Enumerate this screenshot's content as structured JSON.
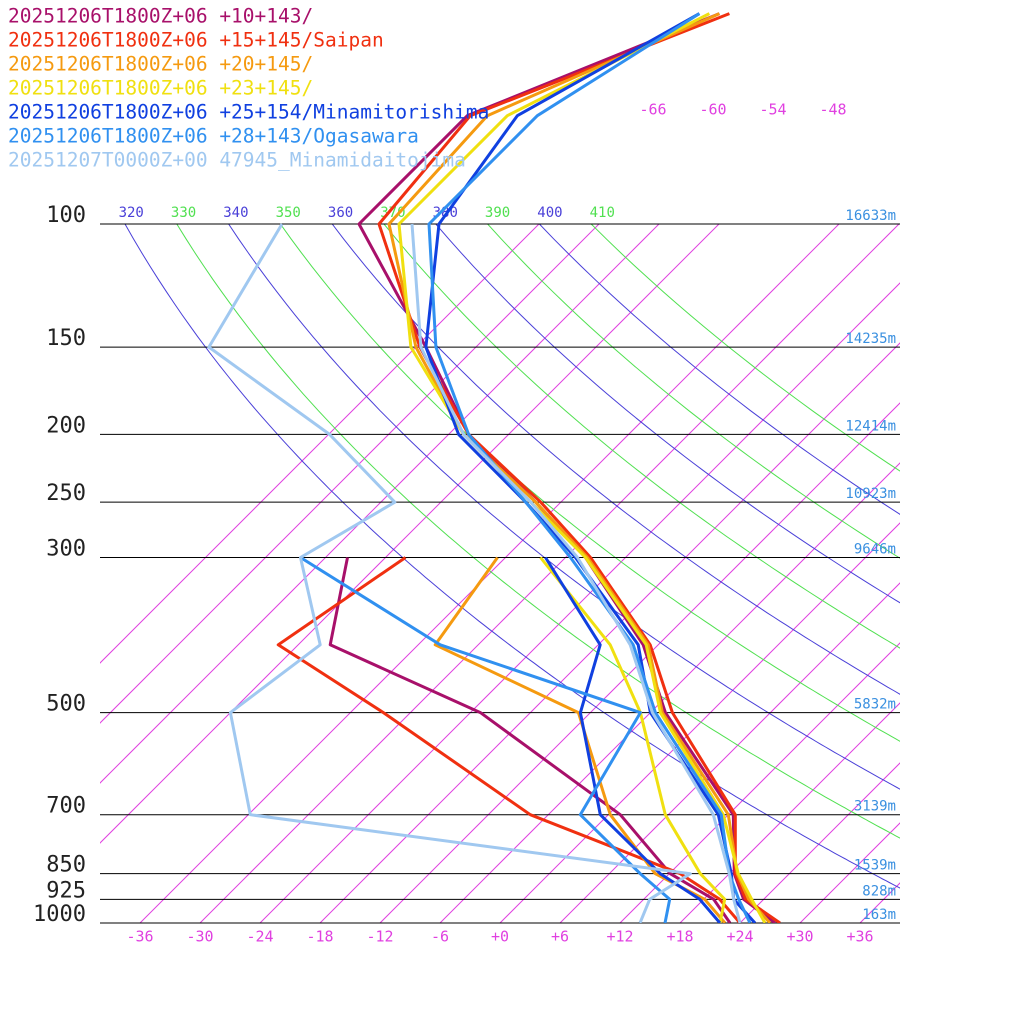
{
  "chart_data": {
    "type": "skewt",
    "xlim": [
      -40,
      40
    ],
    "ylim": [
      1000,
      100
    ],
    "xticks": [
      -36,
      -30,
      -24,
      -18,
      -12,
      -6,
      {
        "value": 0,
        "label": "+0"
      },
      {
        "value": 6,
        "label": "+6"
      },
      {
        "value": 12,
        "label": "+12"
      },
      {
        "value": 18,
        "label": "+18"
      },
      {
        "value": 24,
        "label": "+24"
      },
      {
        "value": 30,
        "label": "+30"
      },
      {
        "value": 36,
        "label": "+36"
      }
    ],
    "top_isotherm_labels": [
      -66,
      -60,
      -54,
      -48
    ],
    "isotherm_color": "#e040e0",
    "adiabat_labels": [
      320,
      330,
      340,
      350,
      360,
      370,
      380,
      390,
      400,
      410
    ],
    "adiabat_colors": [
      "#4a40d8",
      "#50e050"
    ],
    "levels": [
      {
        "pressure": 100,
        "height": "16633m"
      },
      {
        "pressure": 150,
        "height": "14235m"
      },
      {
        "pressure": 200,
        "height": "12414m"
      },
      {
        "pressure": 250,
        "height": "10923m"
      },
      {
        "pressure": 300,
        "height": "9646m"
      },
      {
        "pressure": 500,
        "height": "5832m"
      },
      {
        "pressure": 700,
        "height": "3139m"
      },
      {
        "pressure": 850,
        "height": "1539m"
      },
      {
        "pressure": 925,
        "height": "828m"
      },
      {
        "pressure": 1000,
        "height": "163m"
      }
    ],
    "pressure": [
      1000,
      925,
      850,
      700,
      500,
      400,
      300,
      250,
      200,
      150,
      100,
      70,
      50
    ],
    "series": [
      {
        "name": "20251206T1800Z+06 +10+143/",
        "color": "#a8106a",
        "temperature": [
          27.5,
          22,
          18.5,
          12.5,
          -4.5,
          -13.5,
          -28,
          -38.5,
          -52,
          -65,
          -84,
          -84,
          -69
        ],
        "dewpoint": [
          23,
          19,
          12.1,
          1.2,
          -23,
          -44.8,
          -51.8,
          null,
          null,
          null,
          null,
          null,
          null
        ]
      },
      {
        "name": "20251206T1800Z+06 +15+145/Saipan",
        "color": "#f03010",
        "temperature": [
          28,
          22.2,
          18.6,
          12.7,
          -3.8,
          -12.8,
          -27.5,
          -38,
          -52,
          -65.6,
          -82,
          -83.7,
          -68
        ],
        "dewpoint": [
          24,
          19.6,
          13.1,
          -7.8,
          -32.7,
          -50,
          -46,
          null,
          null,
          null,
          null,
          null,
          null
        ]
      },
      {
        "name": "20251206T1800Z+06 +20+145/",
        "color": "#f59a10",
        "temperature": [
          27,
          22.5,
          18.8,
          12,
          -4.8,
          -13,
          -27.8,
          -38.5,
          -52.5,
          -66,
          -81,
          -82,
          -69
        ],
        "dewpoint": [
          22.5,
          18.1,
          10.6,
          0.2,
          -13.2,
          -34.3,
          -36.8,
          null,
          null,
          null,
          null,
          null,
          null
        ]
      },
      {
        "name": "20251206T1800Z+06 +23+145/",
        "color": "#f0e010",
        "temperature": [
          26.5,
          22.8,
          18.9,
          11.5,
          -5,
          -13.2,
          -28,
          -39,
          -52.5,
          -66.5,
          -80,
          -80,
          -70
        ],
        "dewpoint": [
          22,
          20.1,
          15.1,
          5.7,
          -7,
          -16.8,
          -32.5,
          null,
          null,
          null,
          null,
          null,
          null
        ]
      },
      {
        "name": "20251206T1800Z+06 +25+154/Minamitorishima",
        "color": "#1040e0",
        "temperature": [
          25.5,
          21,
          18.2,
          11,
          -6,
          -14,
          -29,
          -39.5,
          -53,
          -65,
          -76,
          -79,
          -71
        ],
        "dewpoint": [
          22,
          17.6,
          11.1,
          -0.8,
          -13,
          -17.8,
          -32,
          null,
          null,
          null,
          null,
          null,
          null
        ]
      },
      {
        "name": "20251206T1800Z+06 +28+143/Ogasawara",
        "color": "#3090f0",
        "temperature": [
          25,
          21.5,
          18,
          11.3,
          -5.5,
          -14.5,
          -29.5,
          -39.5,
          -52,
          -64,
          -77,
          -77,
          -71
        ],
        "dewpoint": [
          16.5,
          14.6,
          9.1,
          -2.8,
          -7,
          -33.8,
          -56.5,
          null,
          null,
          null,
          null,
          null,
          null
        ]
      },
      {
        "name": "20251207T0000Z+00 47945_Minamidaitojima",
        "color": "#a0c8f0",
        "temperature": [
          24,
          21,
          18,
          10.5,
          -5.8,
          -14.8,
          -28.8,
          -39,
          -52.5,
          -65.5,
          -78.7,
          null,
          null
        ],
        "dewpoint": [
          14,
          12.6,
          14.1,
          -35.8,
          -48,
          -45.8,
          -56.5,
          -52.6,
          -65.9,
          -86.7,
          -91.7,
          null,
          null
        ]
      }
    ]
  }
}
